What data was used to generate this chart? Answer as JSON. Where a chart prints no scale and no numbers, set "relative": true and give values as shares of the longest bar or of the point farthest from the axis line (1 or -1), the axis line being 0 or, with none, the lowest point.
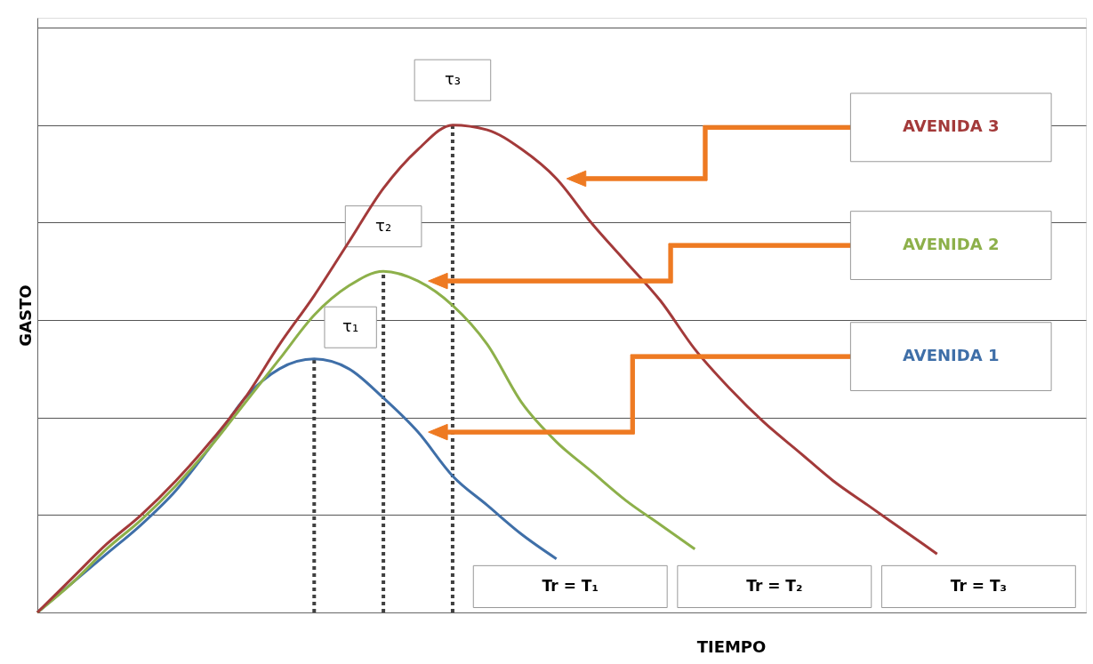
{
  "chart_data": {
    "type": "line",
    "relative": true,
    "xlabel": "TIEMPO",
    "ylabel": "GASTO",
    "categories": [
      null,
      null,
      null,
      null,
      null,
      null,
      null,
      null,
      null,
      null,
      null,
      null,
      null,
      null,
      null,
      null,
      null,
      null,
      null,
      null,
      null,
      null,
      null,
      null,
      null,
      null,
      null,
      null,
      null,
      null,
      null
    ],
    "series": [
      {
        "name": "AVENIDA 1",
        "color": "#3f6fa8",
        "values": [
          0,
          0.06,
          0.12,
          0.18,
          0.25,
          0.34,
          0.44,
          0.5,
          0.52,
          0.5,
          0.44,
          0.37,
          0.28,
          0.22,
          0.16,
          0.11,
          null,
          null,
          null,
          null,
          null,
          null,
          null,
          null,
          null,
          null,
          null,
          null,
          null,
          null,
          null
        ]
      },
      {
        "name": "AVENIDA 2",
        "color": "#8db04a",
        "values": [
          0,
          0.06,
          0.13,
          0.19,
          0.26,
          0.34,
          0.43,
          0.52,
          0.61,
          0.67,
          0.7,
          0.68,
          0.63,
          0.55,
          0.43,
          0.35,
          0.29,
          0.23,
          0.18,
          0.13,
          null,
          null,
          null,
          null,
          null,
          null,
          null,
          null,
          null,
          null,
          null
        ]
      },
      {
        "name": "AVENIDA 3",
        "color": "#a33a3a",
        "values": [
          0,
          0.07,
          0.14,
          0.2,
          0.27,
          0.35,
          0.44,
          0.55,
          0.65,
          0.76,
          0.87,
          0.95,
          1,
          0.99,
          0.95,
          0.89,
          0.8,
          0.72,
          0.64,
          0.54,
          0.46,
          0.39,
          0.33,
          0.27,
          0.22,
          0.17,
          0.12,
          null,
          null,
          null,
          null
        ]
      }
    ],
    "annotations": [
      "τ₁",
      "τ₂",
      "τ₃",
      "Tr = T₁",
      "Tr = T₂",
      "Tr = T₃"
    ],
    "grid": "y",
    "legend": false,
    "tick_labels": false
  }
}
